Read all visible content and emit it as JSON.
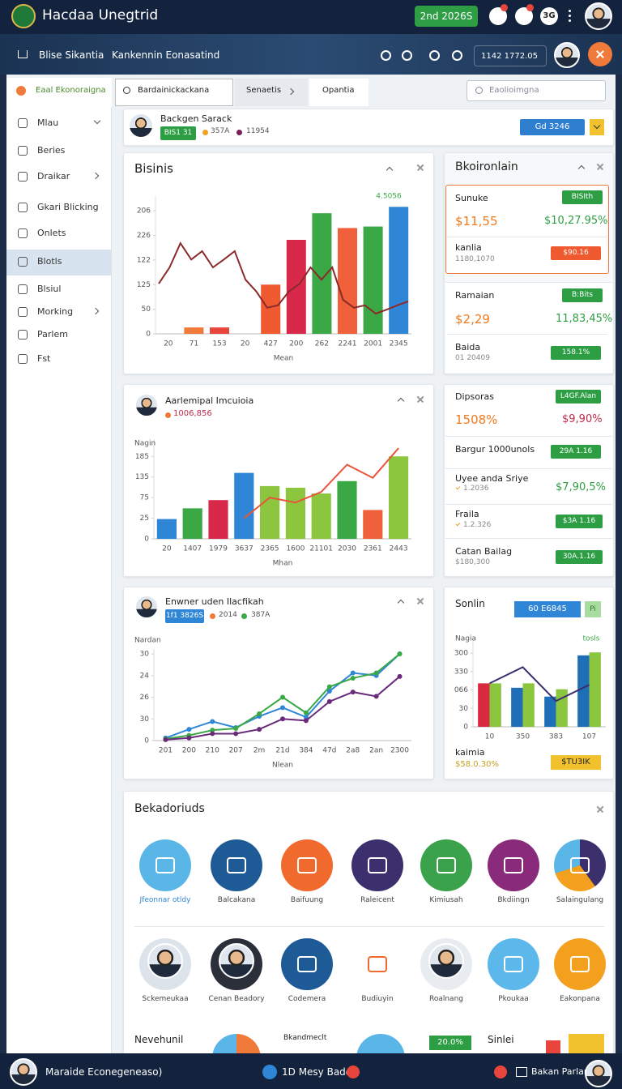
{
  "header": {
    "title": "Hacdaa Unegtrid",
    "button": "2nd 2026S",
    "user_badge": "3G"
  },
  "nav": {
    "items": [
      "Blise Sikantia",
      "Kankennin Eonasatind"
    ],
    "balance": "1142 1772.05"
  },
  "tabs": {
    "items": [
      "Eaal Ekonoraigna",
      "Bardainickackana",
      "Senaetis",
      "Opantia"
    ],
    "search": "Eaolioimgna"
  },
  "sidebar": {
    "items": [
      "Mlau",
      "Beries",
      "Draikar",
      "Gkari Blicking",
      "Onlets",
      "Blotls",
      "Blsiul",
      "Morking",
      "Parlem",
      "Fst"
    ]
  },
  "profile": {
    "name": "Backgen Sarack",
    "badge": "BIS1 31",
    "stat1": "357A",
    "stat2": "11954",
    "button": "Gd 3246"
  },
  "chart_data": [
    {
      "type": "bar",
      "title": "Bisinis",
      "xlabel": "Mean",
      "annotation": "4.5056",
      "categories": [
        "20",
        "71",
        "153",
        "20",
        "427",
        "200",
        "262",
        "2241",
        "2001",
        "2345"
      ],
      "values": [
        null,
        13,
        13,
        null,
        100,
        191,
        245,
        215,
        218,
        258
      ],
      "colors": [
        "#f07a3a",
        "#f07a3a",
        "#e8453c",
        "#f07a3a",
        "#f05a30",
        "#d8294a",
        "#3aa845",
        "#f0603a",
        "#3aa845",
        "#2f86d6"
      ],
      "line_values": [
        102,
        135,
        184,
        151,
        168,
        135,
        151,
        168,
        110,
        86,
        53,
        58,
        86,
        102,
        135,
        110,
        135,
        69,
        53,
        58,
        41,
        49,
        58,
        66
      ],
      "line_color": "#8a2a2a",
      "ylim": [
        0,
        270
      ],
      "yticks": [
        0,
        50,
        {
          "value": 100,
          "label": "125"
        },
        {
          "value": 150,
          "label": "122"
        },
        {
          "value": 200,
          "label": "226"
        },
        {
          "value": 250,
          "label": "206"
        }
      ],
      "grid": false
    },
    {
      "type": "bar",
      "title": "Aarlemipal Imcuioia",
      "subtitle": "1006,856",
      "ylabel": "Nagin",
      "xlabel": "Mhan",
      "categories": [
        "20",
        "1407",
        "1979",
        "3637",
        "2365",
        "1600",
        "21101",
        "2030",
        "2361",
        "2443"
      ],
      "values": [
        24,
        37,
        47,
        80,
        64,
        62,
        55,
        70,
        35,
        100
      ],
      "colors": [
        "#2f86d6",
        "#3aa845",
        "#d8294a",
        "#2f86d6",
        "#8cc63f",
        "#8cc63f",
        "#8cc63f",
        "#3aa845",
        "#f0603a",
        "#8cc63f"
      ],
      "line_values": [
        null,
        null,
        null,
        25,
        50,
        44,
        57,
        90,
        74,
        110
      ],
      "line_color": "#e8553a",
      "ylim": [
        0,
        115
      ],
      "yticks": [
        0,
        25,
        {
          "value": 50,
          "label": "75"
        },
        {
          "value": 75,
          "label": "135"
        },
        {
          "value": 100,
          "label": "185"
        }
      ],
      "grid": false
    },
    {
      "type": "line",
      "title": "Enwner uden Ilacfikah",
      "badge": "1f1 3826S",
      "stat1": "2014",
      "stat2": "387A",
      "ylabel": "Nardan",
      "xlabel": "Nlean",
      "categories": [
        "201",
        "200",
        "210",
        "207",
        "2m",
        "21d",
        "384",
        "47d",
        "2a8",
        "2an",
        "2300"
      ],
      "series": [
        {
          "color": "#2f86d6",
          "values": [
            3,
            13,
            22,
            15,
            28,
            38,
            27,
            57,
            78,
            75,
            100
          ]
        },
        {
          "color": "#3aa845",
          "values": [
            2,
            6,
            12,
            14,
            31,
            50,
            32,
            62,
            72,
            78,
            100
          ]
        },
        {
          "color": "#6a2a7a",
          "values": [
            1,
            3,
            8,
            8,
            13,
            25,
            23,
            45,
            56,
            51,
            74
          ]
        }
      ],
      "ylim": [
        0,
        100
      ],
      "yticks": [
        0,
        {
          "value": 25,
          "label": "30"
        },
        {
          "value": 50,
          "label": "26"
        },
        {
          "value": 75,
          "label": "24"
        },
        {
          "value": 100,
          "label": "30"
        }
      ],
      "grid": false
    },
    {
      "type": "bar",
      "title": "Sonlin",
      "button": "60 E6845",
      "button2": "Pi",
      "ylabel": "Nagia",
      "annotation": "tosls",
      "categories": [
        "10",
        "350",
        "383",
        "107"
      ],
      "series": [
        {
          "colors": [
            "#d8293f",
            "#1e6fb8",
            "#1e6fb8",
            "#1e6fb8"
          ],
          "values": [
            59,
            53,
            41,
            97
          ]
        },
        {
          "color": "#8cc63f",
          "values": [
            59,
            59,
            51,
            101
          ]
        }
      ],
      "line_values": [
        59,
        81,
        35,
        57
      ],
      "line_color": "#3c2f6e",
      "ylim": [
        0,
        110
      ],
      "yticks": [
        0,
        {
          "value": 25,
          "label": "30"
        },
        {
          "value": 50,
          "label": "066"
        },
        {
          "value": 75,
          "label": "330"
        },
        {
          "value": 100,
          "label": "300"
        }
      ],
      "grid": false,
      "footer_label": "kaimia",
      "footer_value": "$58.0.30%",
      "footer_badge": "$TU3IK"
    }
  ],
  "panels": [
    {
      "title": "Bkoironlain",
      "rows": [
        {
          "label": "Sunuke",
          "badge": "BISIth",
          "value": "$11,55",
          "change": "$10,27.95%"
        },
        {
          "label": "kanlia",
          "sub": "1180,1070",
          "badge": "$90.16"
        },
        {
          "label": "Ramaian",
          "badge": "B:Bits",
          "value": "$2,29",
          "change": "11,83,45%"
        },
        {
          "label": "Baida",
          "sub": "01 20409",
          "badge": "158.1%"
        }
      ]
    },
    {
      "title": "Dipsoras",
      "badge": "L4GF.Alan",
      "value": "1508%",
      "change": "$9,90%",
      "rows": [
        {
          "label": "Bargur 1000unols",
          "badge": "29A 1.16"
        },
        {
          "label": "Uyee anda Sriye",
          "sub": "1.2036",
          "change": "$7,90,5%"
        },
        {
          "label": "Fraila",
          "sub": "1.2.326",
          "badge": "$3A 1.16"
        },
        {
          "label": "Catan Bailag",
          "sub": "$180,300",
          "badge": "30A.1.16"
        }
      ]
    }
  ],
  "grid": {
    "title": "Bekadoriuds",
    "rows": [
      [
        "Jfeonnar otldy",
        "Balcakana",
        "Baifuung",
        "Raleicent",
        "Kimiusah",
        "Bkdiingn",
        "Salaingulang"
      ],
      [
        "Sckemeukaa",
        "Cenan Beadory",
        "Codemera",
        "Budiuyin",
        "Roalnang",
        "Pkoukaa",
        "Eakonpana"
      ]
    ]
  },
  "partial": {
    "items": [
      "Nevehunil",
      "Bkandmeclt",
      "20.0%",
      "Sinlei"
    ]
  },
  "footer": {
    "left": "Maraide Econegeneaso)",
    "center": "1D Mesy Badea",
    "right": "Bakan Parlan"
  }
}
